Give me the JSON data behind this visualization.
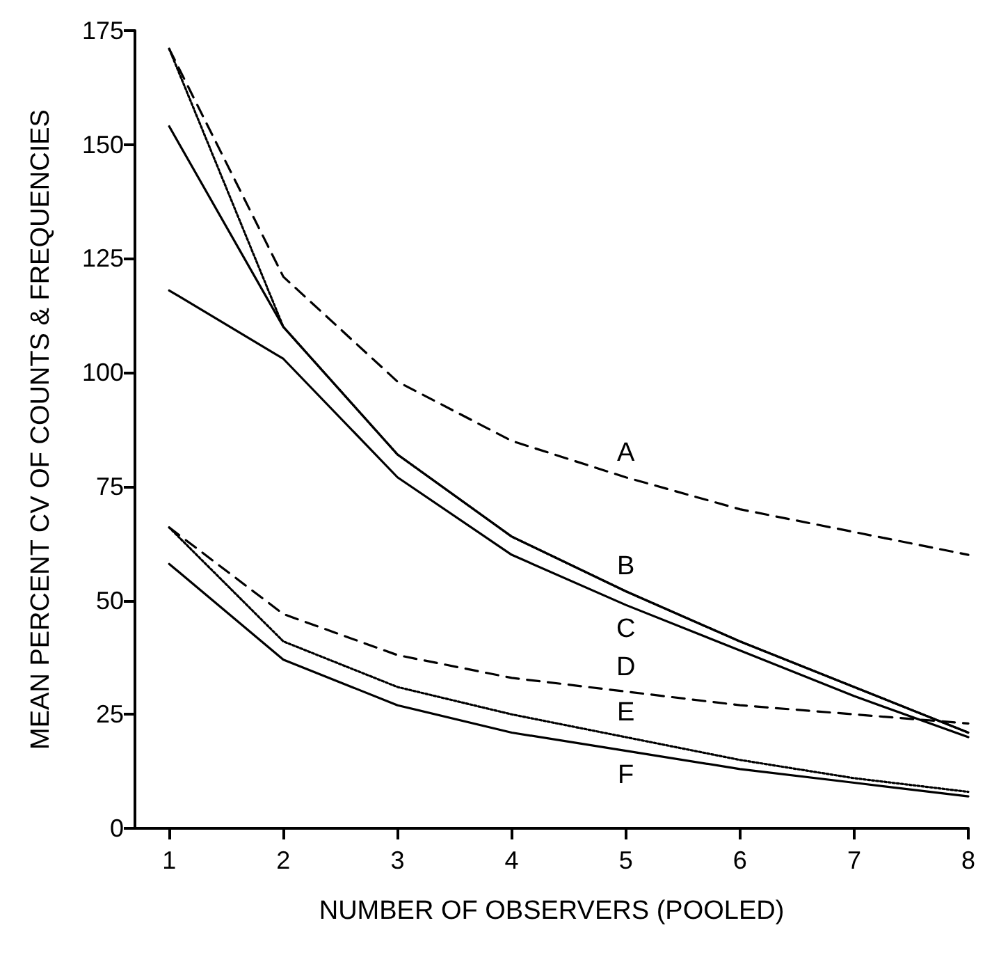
{
  "chart_data": {
    "type": "line",
    "xlabel": "NUMBER OF OBSERVERS (POOLED)",
    "ylabel": "MEAN PERCENT CV OF COUNTS & FREQUENCIES",
    "x": [
      1,
      2,
      3,
      4,
      5,
      6,
      7,
      8
    ],
    "series": [
      {
        "name": "A",
        "color": "#000000",
        "line_style": "dashed",
        "values": [
          171,
          121,
          98,
          85,
          77,
          70,
          65,
          60
        ]
      },
      {
        "name": "B",
        "color": "#000000",
        "line_style": "dotted",
        "values": [
          171,
          110,
          82,
          64,
          52,
          41,
          31,
          21
        ]
      },
      {
        "color": "#000000",
        "line_style": "solid",
        "values": [
          154,
          110,
          82,
          64,
          52,
          41,
          31,
          21
        ]
      },
      {
        "name": "C",
        "color": "#000000",
        "line_style": "solid",
        "values": [
          118,
          103,
          77,
          60,
          49,
          39,
          29,
          20
        ]
      },
      {
        "name": "D",
        "color": "#000000",
        "line_style": "dashed",
        "values": [
          66,
          47,
          38,
          33,
          30,
          27,
          25,
          23
        ]
      },
      {
        "name": "E",
        "color": "#000000",
        "line_style": "dotted",
        "values": [
          66,
          41,
          31,
          25,
          20,
          15,
          11,
          8
        ]
      },
      {
        "name": "F",
        "color": "#000000",
        "line_style": "solid",
        "values": [
          58,
          37,
          27,
          21,
          17,
          13,
          10,
          7
        ]
      }
    ],
    "xlim": [
      0.7,
      8
    ],
    "xticks": [
      1,
      2,
      3,
      4,
      5,
      6,
      7,
      8
    ],
    "ylim": [
      0,
      175
    ],
    "yticks": [
      0,
      25,
      50,
      75,
      100,
      125,
      150,
      175
    ],
    "grid": false,
    "marker": "none"
  }
}
